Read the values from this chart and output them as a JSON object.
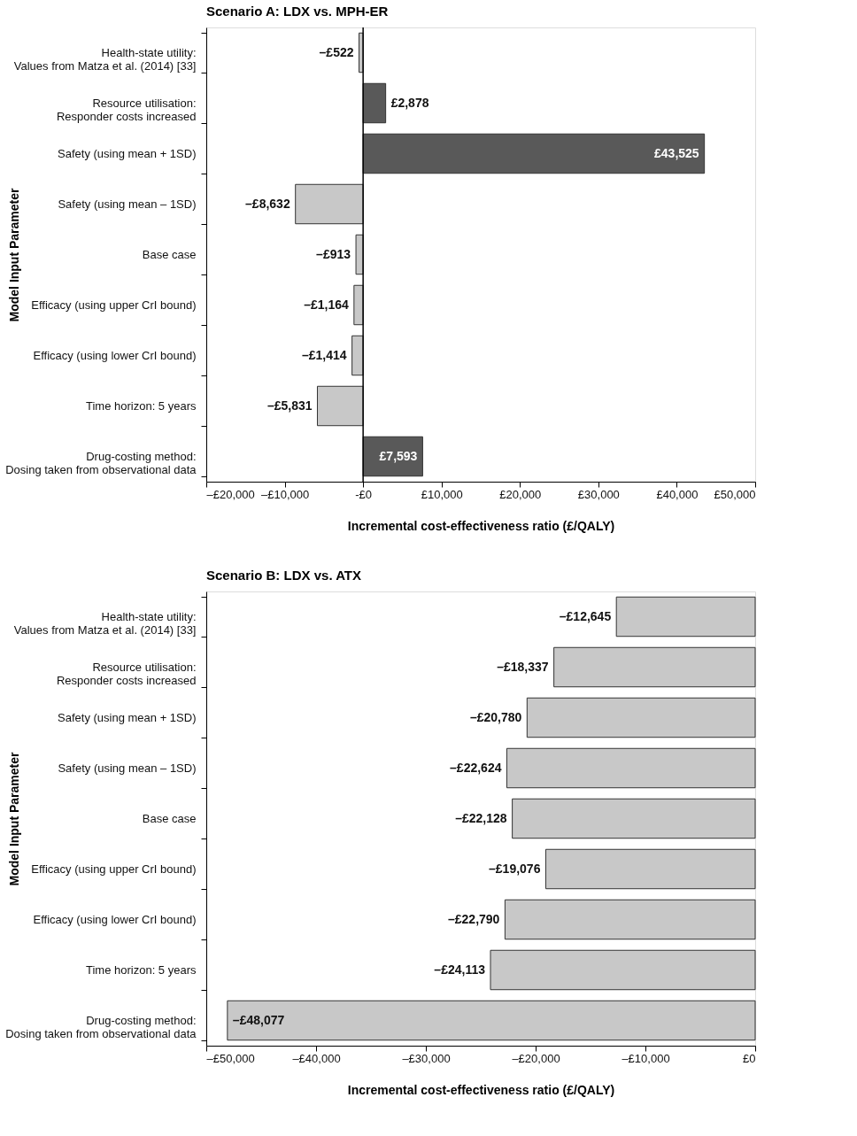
{
  "chart_data": [
    {
      "type": "bar",
      "orientation": "horizontal",
      "title": "Scenario A: LDX vs. MPH-ER",
      "xlabel": "Incremental cost-effectiveness ratio (£/QALY)",
      "ylabel": "Model Input Parameter",
      "categories": [
        "Health-state utility: Values from Matza et al. (2014) [33]",
        "Resource utilisation: Responder costs increased",
        "Safety (using mean + 1SD)",
        "Safety (using mean – 1SD)",
        "Base case",
        "Efficacy (using upper CrI bound)",
        "Efficacy (using lower CrI bound)",
        "Time horizon: 5 years",
        "Drug-costing method: Dosing taken from observational data"
      ],
      "values": [
        -522,
        2878,
        43525,
        -8632,
        -913,
        -1164,
        -1414,
        -5831,
        7593
      ],
      "colors": [
        "#c8c8c8",
        "#595959",
        "#595959",
        "#c8c8c8",
        "#c8c8c8",
        "#c8c8c8",
        "#c8c8c8",
        "#c8c8c8",
        "#595959"
      ],
      "value_labels": [
        "–£522",
        "£2,878",
        "£43,525",
        "–£8,632",
        "–£913",
        "–£1,164",
        "–£1,414",
        "–£5,831",
        "£7,593"
      ],
      "xlim": [
        -20000,
        50000
      ],
      "xticks": [
        {
          "value": -20000,
          "label": "–£20,000"
        },
        {
          "value": -10000,
          "label": "–£10,000"
        },
        {
          "value": 0,
          "label": "-£0"
        },
        {
          "value": 10000,
          "label": "£10,000"
        },
        {
          "value": 20000,
          "label": "£20,000"
        },
        {
          "value": 30000,
          "label": "£30,000"
        },
        {
          "value": 40000,
          "label": "£40,000"
        },
        {
          "value": 50000,
          "label": "£50,000"
        }
      ],
      "ref_lines": [
        {
          "axis": "x",
          "value": 0
        }
      ],
      "grid": false
    },
    {
      "type": "bar",
      "orientation": "horizontal",
      "title": "Scenario B: LDX vs. ATX",
      "xlabel": "Incremental cost-effectiveness ratio (£/QALY)",
      "ylabel": "Model Input Parameter",
      "categories": [
        "Health-state utility: Values from Matza et al. (2014) [33]",
        "Resource utilisation: Responder costs increased",
        "Safety (using mean + 1SD)",
        "Safety (using mean – 1SD)",
        "Base case",
        "Efficacy (using upper CrI bound)",
        "Efficacy (using lower CrI bound)",
        "Time horizon: 5 years",
        "Drug-costing method: Dosing taken from observational data"
      ],
      "values": [
        -12645,
        -18337,
        -20780,
        -22624,
        -22128,
        -19076,
        -22790,
        -24113,
        -48077
      ],
      "colors": [
        "#c8c8c8",
        "#c8c8c8",
        "#c8c8c8",
        "#c8c8c8",
        "#c8c8c8",
        "#c8c8c8",
        "#c8c8c8",
        "#c8c8c8",
        "#c8c8c8"
      ],
      "value_labels": [
        "–£12,645",
        "–£18,337",
        "–£20,780",
        "–£22,624",
        "–£22,128",
        "–£19,076",
        "–£22,790",
        "–£24,113",
        "–£48,077"
      ],
      "xlim": [
        -50000,
        0
      ],
      "xticks": [
        {
          "value": -50000,
          "label": "–£50,000"
        },
        {
          "value": -40000,
          "label": "–£40,000"
        },
        {
          "value": -30000,
          "label": "–£30,000"
        },
        {
          "value": -20000,
          "label": "–£20,000"
        },
        {
          "value": -10000,
          "label": "–£10,000"
        },
        {
          "value": 0,
          "label": "£0"
        }
      ],
      "grid": false
    }
  ]
}
